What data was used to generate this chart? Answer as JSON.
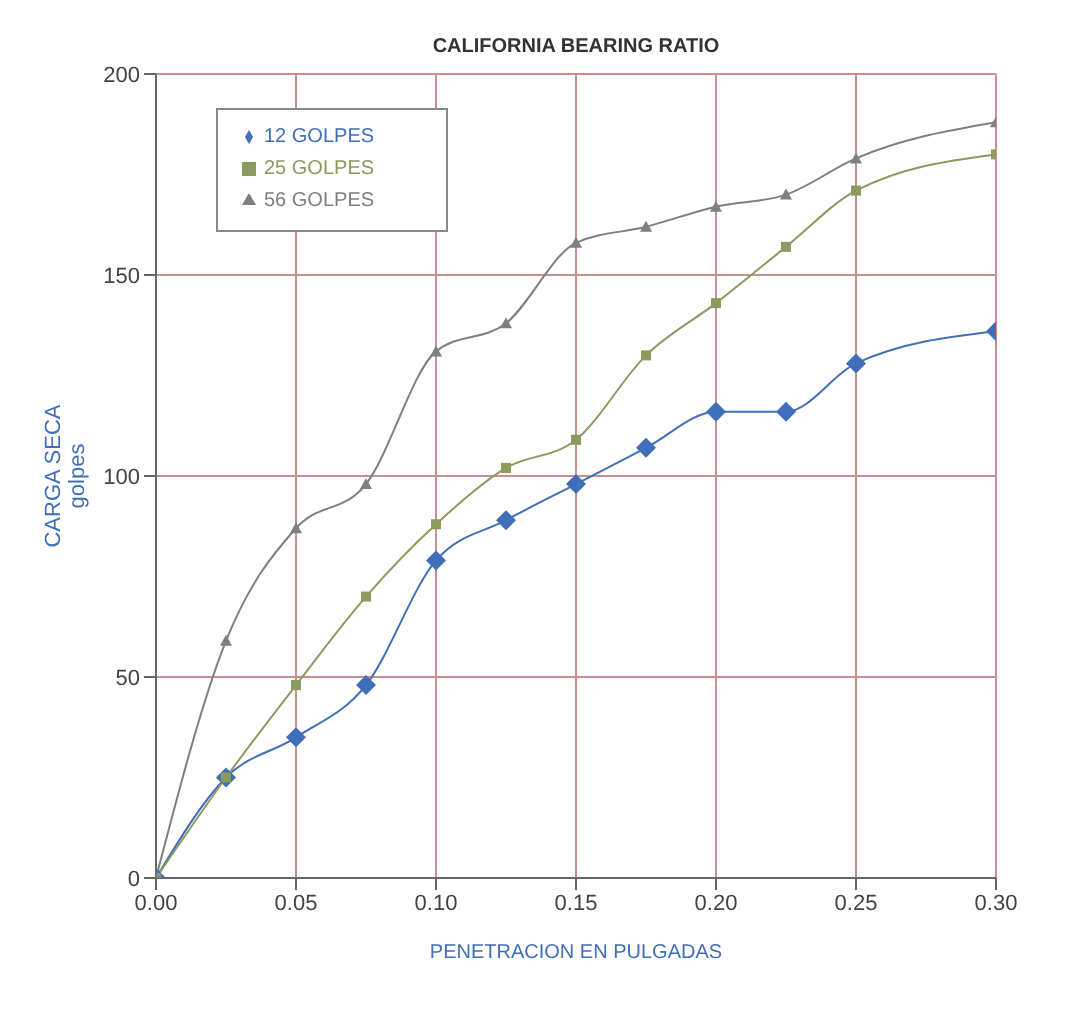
{
  "chart_data": {
    "type": "line",
    "title": "CALIFORNIA BEARING  RATIO",
    "xlabel": "PENETRACION EN PULGADAS",
    "ylabel": "CARGA SECA\ngolpes",
    "x": [
      0,
      0.025,
      0.05,
      0.075,
      0.1,
      0.125,
      0.15,
      0.175,
      0.2,
      0.225,
      0.25,
      0.3
    ],
    "series": [
      {
        "name": "12 GOLPES",
        "color": "#3f6fb8",
        "marker": "diamond",
        "values": [
          0,
          25,
          35,
          48,
          79,
          89,
          98,
          107,
          116,
          116,
          128,
          136
        ]
      },
      {
        "name": "25 GOLPES",
        "color": "#8c9a5e",
        "marker": "square",
        "values": [
          0,
          25,
          48,
          70,
          88,
          102,
          109,
          130,
          143,
          157,
          171,
          180
        ]
      },
      {
        "name": "56 GOLPES",
        "color": "#7f7f7f",
        "marker": "triangle",
        "values": [
          0,
          59,
          87,
          98,
          131,
          138,
          158,
          162,
          167,
          170,
          179,
          188
        ]
      }
    ],
    "xlim": [
      0,
      0.3
    ],
    "xticks": [
      {
        "value": 0,
        "label": "0.00"
      },
      0.05,
      {
        "value": 0.1,
        "label": "0.10"
      },
      0.15,
      {
        "value": 0.2,
        "label": "0.20"
      },
      0.25,
      {
        "value": 0.3,
        "label": "0.30"
      }
    ],
    "ylim": [
      0,
      200
    ],
    "yticks": [
      0,
      50,
      100,
      150,
      200
    ],
    "grid": true,
    "legend": "top left",
    "line_style": "solid"
  }
}
